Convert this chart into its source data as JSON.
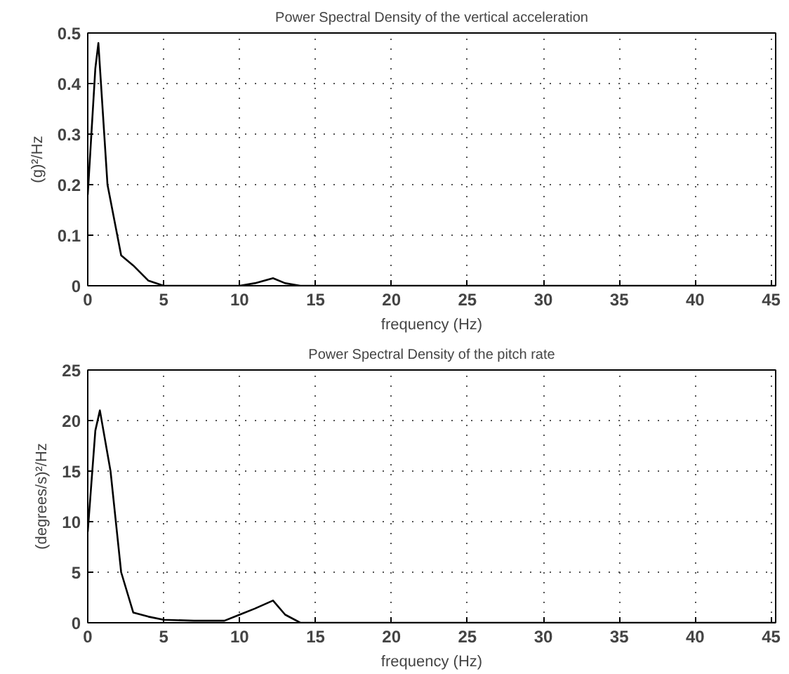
{
  "chart_data": [
    {
      "type": "line",
      "title": "Power Spectral Density of the vertical acceleration",
      "xlabel": "frequency (Hz)",
      "ylabel": "(g)²/Hz",
      "x": [
        0,
        0.5,
        0.7,
        1.3,
        2.2,
        3,
        4,
        5,
        10,
        11,
        12.2,
        13,
        14,
        45.3
      ],
      "series": [
        {
          "color": "#000000",
          "values": [
            0.18,
            0.43,
            0.48,
            0.2,
            0.06,
            0.04,
            0.01,
            0,
            0,
            0.005,
            0.015,
            0.005,
            0,
            0
          ]
        }
      ],
      "xlim": [
        0,
        45.3
      ],
      "ylim": [
        0,
        0.5
      ],
      "xticks": [
        0,
        5,
        10,
        15,
        20,
        25,
        30,
        35,
        40,
        45
      ],
      "yticks": [
        0,
        0.1,
        0.2,
        0.3,
        0.4,
        0.5
      ],
      "grid": true
    },
    {
      "type": "line",
      "title": "Power Spectral Density of the pitch rate",
      "xlabel": "frequency (Hz)",
      "ylabel": "(degrees/s)²/Hz",
      "x": [
        0,
        0.5,
        0.8,
        1.5,
        2.2,
        3,
        4,
        5,
        7,
        9,
        10,
        11,
        12.2,
        13,
        14,
        45.3
      ],
      "series": [
        {
          "color": "#000000",
          "values": [
            9,
            19,
            21,
            15,
            5,
            1,
            0.6,
            0.3,
            0.2,
            0.2,
            0.8,
            1.4,
            2.2,
            0.8,
            0,
            0
          ]
        }
      ],
      "xlim": [
        0,
        45.3
      ],
      "ylim": [
        0,
        25
      ],
      "xticks": [
        0,
        5,
        10,
        15,
        20,
        25,
        30,
        35,
        40,
        45
      ],
      "yticks": [
        0,
        5,
        10,
        15,
        20,
        25
      ],
      "grid": true
    }
  ]
}
